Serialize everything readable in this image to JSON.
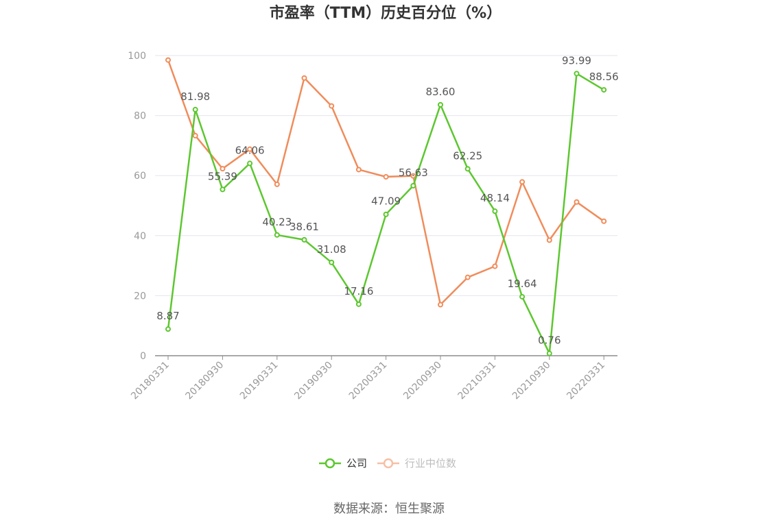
{
  "chart_data": {
    "type": "line",
    "title": "市盈率（TTM）历史百分位（%）",
    "x": [
      "20180331",
      "20180630",
      "20180930",
      "20181231",
      "20190331",
      "20190630",
      "20190930",
      "20191231",
      "20200331",
      "20200630",
      "20200930",
      "20201231",
      "20210331",
      "20210630",
      "20210930",
      "20211231",
      "20220331"
    ],
    "x_tick_labels": [
      "20180331",
      "20180930",
      "20190331",
      "20190930",
      "20200331",
      "20200930",
      "20210331",
      "20210930",
      "20220331"
    ],
    "ylim": [
      0,
      100
    ],
    "y_ticks": [
      "0",
      "20",
      "40",
      "60",
      "80",
      "100"
    ],
    "grid": true,
    "legend_position": "bottom",
    "series": [
      {
        "name": "公司",
        "color": "#5cc72f",
        "values": [
          8.87,
          81.98,
          55.39,
          64.06,
          40.23,
          38.61,
          31.08,
          17.16,
          47.09,
          56.63,
          83.6,
          62.25,
          48.14,
          19.64,
          0.76,
          93.99,
          88.56
        ],
        "labels": [
          "8.87",
          "81.98",
          "55.39",
          "64.06",
          "40.23",
          "38.61",
          "31.08",
          "17.16",
          "47.09",
          "56.63",
          "83.60",
          "62.25",
          "48.14",
          "19.64",
          "0.76",
          "93.99",
          "88.56"
        ]
      },
      {
        "name": "行业中位数",
        "color": "#f08c5a",
        "values": [
          98.5,
          73.3,
          62.3,
          68.8,
          57.1,
          92.5,
          83.2,
          62.0,
          59.6,
          59.9,
          17.0,
          26.1,
          29.8,
          57.9,
          38.5,
          51.2,
          44.8
        ]
      }
    ],
    "source": "数据来源：恒生聚源"
  }
}
